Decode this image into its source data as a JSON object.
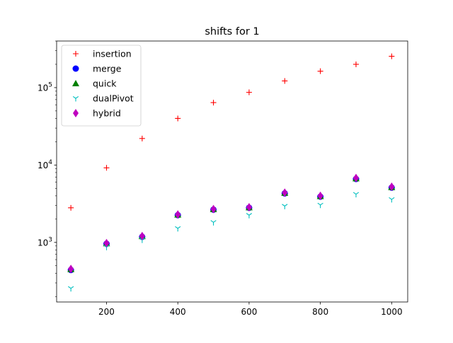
{
  "chart_data": {
    "type": "scatter",
    "title": "shifts for 1",
    "xlabel": "",
    "ylabel": "",
    "x": [
      100,
      200,
      300,
      400,
      500,
      600,
      700,
      800,
      900,
      1000
    ],
    "xlim": [
      60,
      1045
    ],
    "ylim": [
      170,
      400000
    ],
    "yscale": "log",
    "grid": false,
    "legend_position": "upper-left",
    "x_ticks": [
      {
        "value": 200,
        "label": "200"
      },
      {
        "value": 400,
        "label": "400"
      },
      {
        "value": 600,
        "label": "600"
      },
      {
        "value": 800,
        "label": "800"
      },
      {
        "value": 1000,
        "label": "1000"
      }
    ],
    "y_ticks": [
      {
        "value": 1000,
        "base": "10",
        "exp": "3"
      },
      {
        "value": 10000,
        "base": "10",
        "exp": "4"
      },
      {
        "value": 100000,
        "base": "10",
        "exp": "5"
      }
    ],
    "series": [
      {
        "name": "insertion",
        "marker": "plus",
        "color": "#ff0000",
        "values": [
          2800,
          9200,
          22000,
          40000,
          64000,
          87000,
          122000,
          163000,
          200000,
          254000
        ]
      },
      {
        "name": "merge",
        "marker": "circle",
        "color": "#0000ff",
        "values": [
          440,
          960,
          1180,
          2250,
          2650,
          2800,
          4300,
          3900,
          6600,
          5100
        ]
      },
      {
        "name": "quick",
        "marker": "triangle",
        "color": "#008000",
        "values": [
          450,
          970,
          1200,
          2280,
          2680,
          2830,
          4350,
          3950,
          6700,
          5150
        ]
      },
      {
        "name": "dualPivot",
        "marker": "tri-down",
        "color": "#00bfbf",
        "values": [
          255,
          870,
          1080,
          1520,
          1820,
          2250,
          2950,
          3050,
          4200,
          3600
        ]
      },
      {
        "name": "hybrid",
        "marker": "diamond",
        "color": "#bf00bf",
        "values": [
          455,
          980,
          1210,
          2300,
          2700,
          2850,
          4400,
          4000,
          6800,
          5250
        ]
      }
    ]
  }
}
